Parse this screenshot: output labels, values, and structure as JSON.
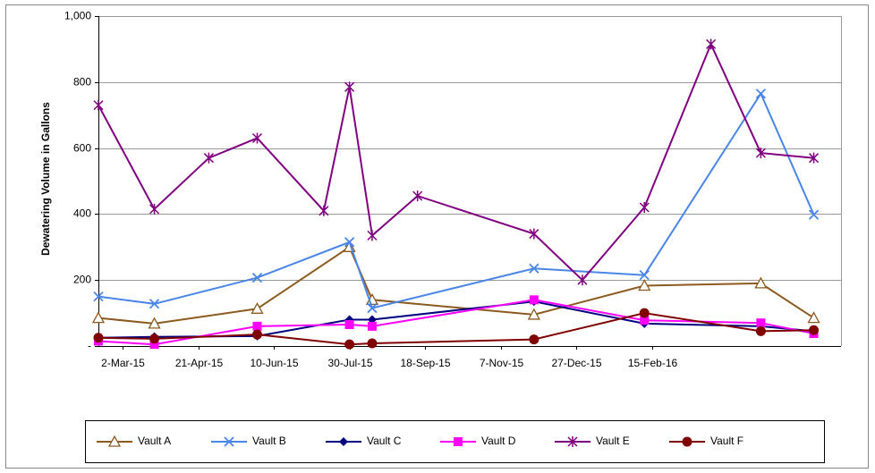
{
  "chart_data": {
    "type": "line",
    "y_label": "Dewatering Volume in Gallons",
    "xlim": [
      "2015-02-14",
      "2016-06-19"
    ],
    "xticks": [
      {
        "value": "2015-03-02",
        "label": "2-Mar-15"
      },
      {
        "value": "2015-04-21",
        "label": "21-Apr-15"
      },
      {
        "value": "2015-06-10",
        "label": "10-Jun-15"
      },
      {
        "value": "2015-07-30",
        "label": "30-Jul-15"
      },
      {
        "value": "2015-09-18",
        "label": "18-Sep-15"
      },
      {
        "value": "2015-11-07",
        "label": "7-Nov-15"
      },
      {
        "value": "2015-12-27",
        "label": "27-Dec-15"
      },
      {
        "value": "2016-02-15",
        "label": "15-Feb-16"
      }
    ],
    "ylim": [
      0,
      1000
    ],
    "yticks": [
      {
        "value": 0,
        "label": "-"
      },
      200,
      400,
      600,
      800,
      {
        "value": 1000,
        "label": "1,000"
      }
    ],
    "grid": true,
    "legend": "bottom",
    "series": [
      {
        "name": "Vault A",
        "color": "#8c5a1e",
        "marker": "triangle",
        "x": [
          "2015-02-14",
          "2015-03-23",
          "2015-05-30",
          "2015-07-30",
          "2015-08-14",
          "2015-11-29",
          "2016-02-10",
          "2016-04-27",
          "2016-06-01"
        ],
        "values": [
          85,
          68,
          113,
          300,
          140,
          95,
          183,
          190,
          85
        ]
      },
      {
        "name": "Vault B",
        "color": "#4a86e8",
        "marker": "x",
        "x": [
          "2015-02-14",
          "2015-03-23",
          "2015-05-30",
          "2015-07-30",
          "2015-08-14",
          "2015-11-29",
          "2016-02-10",
          "2016-04-27",
          "2016-06-01"
        ],
        "values": [
          150,
          128,
          207,
          315,
          115,
          235,
          215,
          765,
          398
        ]
      },
      {
        "name": "Vault C",
        "color": "#000080",
        "marker": "diamond",
        "x": [
          "2015-02-14",
          "2015-03-23",
          "2015-05-30",
          "2015-07-30",
          "2015-08-14",
          "2015-11-29",
          "2016-02-10",
          "2016-04-27",
          "2016-06-01"
        ],
        "values": [
          25,
          28,
          30,
          80,
          80,
          135,
          68,
          60,
          45
        ]
      },
      {
        "name": "Vault D",
        "color": "#ff00ff",
        "marker": "square",
        "x": [
          "2015-02-14",
          "2015-03-23",
          "2015-05-30",
          "2015-07-30",
          "2015-08-14",
          "2015-11-29",
          "2016-02-10",
          "2016-04-27",
          "2016-06-01"
        ],
        "values": [
          15,
          5,
          60,
          65,
          60,
          140,
          78,
          70,
          38
        ]
      },
      {
        "name": "Vault E",
        "color": "#800080",
        "marker": "star",
        "x": [
          "2015-02-14",
          "2015-03-23",
          "2015-04-28",
          "2015-05-30",
          "2015-07-13",
          "2015-07-30",
          "2015-08-14",
          "2015-09-13",
          "2015-11-29",
          "2015-12-31",
          "2016-02-10",
          "2016-03-25",
          "2016-04-27",
          "2016-06-01"
        ],
        "values": [
          730,
          415,
          570,
          630,
          410,
          785,
          335,
          455,
          340,
          200,
          420,
          915,
          585,
          570
        ]
      },
      {
        "name": "Vault F",
        "color": "#800000",
        "marker": "circle",
        "x": [
          "2015-02-14",
          "2015-03-23",
          "2015-05-30",
          "2015-07-30",
          "2015-08-14",
          "2015-11-29",
          "2016-02-10",
          "2016-04-27",
          "2016-06-01"
        ],
        "values": [
          25,
          22,
          35,
          5,
          8,
          20,
          100,
          45,
          48
        ]
      }
    ]
  }
}
